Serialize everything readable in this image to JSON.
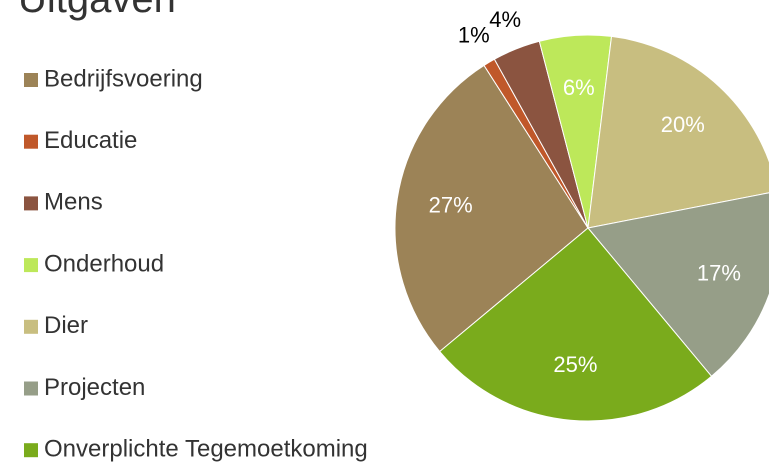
{
  "chart_data": {
    "type": "pie",
    "title": "Uitgaven",
    "categories": [
      "Bedrijfsvoering",
      "Educatie",
      "Mens",
      "Onderhoud",
      "Dier",
      "Projecten",
      "Onverplichte Tegemoetkoming"
    ],
    "values": [
      27,
      1,
      4,
      6,
      20,
      17,
      25
    ],
    "value_labels": [
      "27%",
      "1%",
      "4%",
      "6%",
      "20%",
      "17%",
      "25%"
    ],
    "colors": [
      "#9c8357",
      "#c0582a",
      "#8b5440",
      "#bde85a",
      "#c8be80",
      "#969e88",
      "#7aab1c"
    ],
    "legend": "left"
  }
}
